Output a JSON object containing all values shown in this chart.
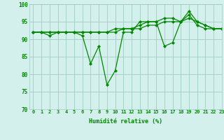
{
  "xlabel": "Humidité relative (%)",
  "bg_color": "#d4f0ec",
  "grid_color": "#a0ccc4",
  "line_color": "#008800",
  "ylim": [
    70,
    100
  ],
  "xlim": [
    -0.5,
    23
  ],
  "yticks": [
    70,
    75,
    80,
    85,
    90,
    95,
    100
  ],
  "xticks": [
    0,
    1,
    2,
    3,
    4,
    5,
    6,
    7,
    8,
    9,
    10,
    11,
    12,
    13,
    14,
    15,
    16,
    17,
    18,
    19,
    20,
    21,
    22,
    23
  ],
  "series1": [
    92,
    92,
    91,
    92,
    92,
    92,
    91,
    83,
    88,
    77,
    81,
    92,
    92,
    95,
    95,
    95,
    88,
    89,
    95,
    98,
    95,
    94,
    93,
    93
  ],
  "series2": [
    92,
    92,
    92,
    92,
    92,
    92,
    92,
    92,
    92,
    92,
    92,
    93,
    93,
    93,
    94,
    94,
    95,
    95,
    95,
    96,
    95,
    94,
    93,
    93
  ],
  "series3": [
    92,
    92,
    92,
    92,
    92,
    92,
    92,
    92,
    92,
    92,
    93,
    93,
    93,
    94,
    95,
    95,
    96,
    96,
    95,
    97,
    94,
    93,
    93,
    93
  ]
}
